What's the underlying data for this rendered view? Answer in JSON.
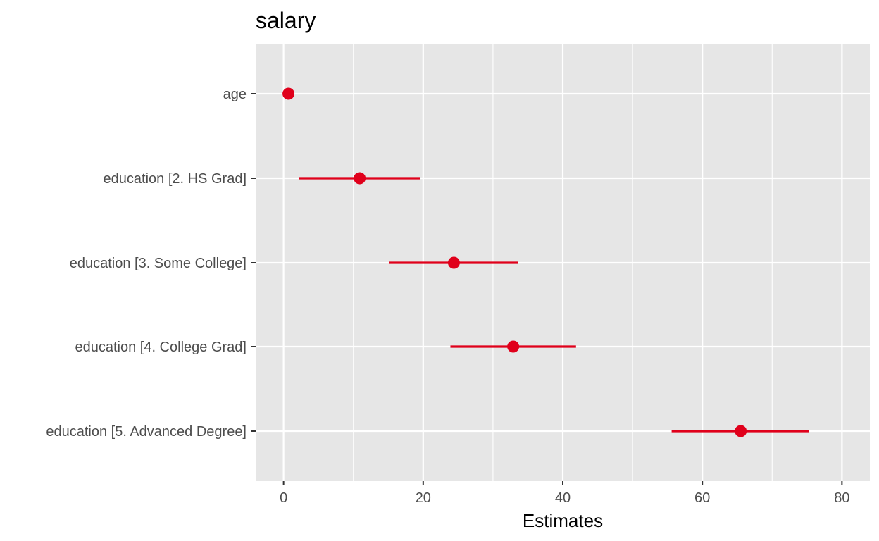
{
  "chart_data": {
    "type": "scatter",
    "title": "salary",
    "xlabel": "Estimates",
    "ylabel": "",
    "xlim": [
      -4,
      84
    ],
    "x_ticks": [
      0,
      20,
      40,
      60,
      80
    ],
    "grid": true,
    "legend": "none",
    "terms": [
      "age",
      "education [2. HS Grad]",
      "education [3. Some College]",
      "education [4. College Grad]",
      "education [5. Advanced Degree]"
    ],
    "estimates": [
      0.7,
      10.9,
      24.4,
      32.9,
      65.5
    ],
    "conf_low": [
      0.5,
      2.2,
      15.1,
      23.9,
      55.6
    ],
    "conf_high": [
      0.9,
      19.6,
      33.6,
      41.9,
      75.3
    ],
    "colors": {
      "point": "#e0001b",
      "panel": "#e6e6e6",
      "grid": "#ffffff",
      "tick_text": "#4d4d4d"
    }
  }
}
